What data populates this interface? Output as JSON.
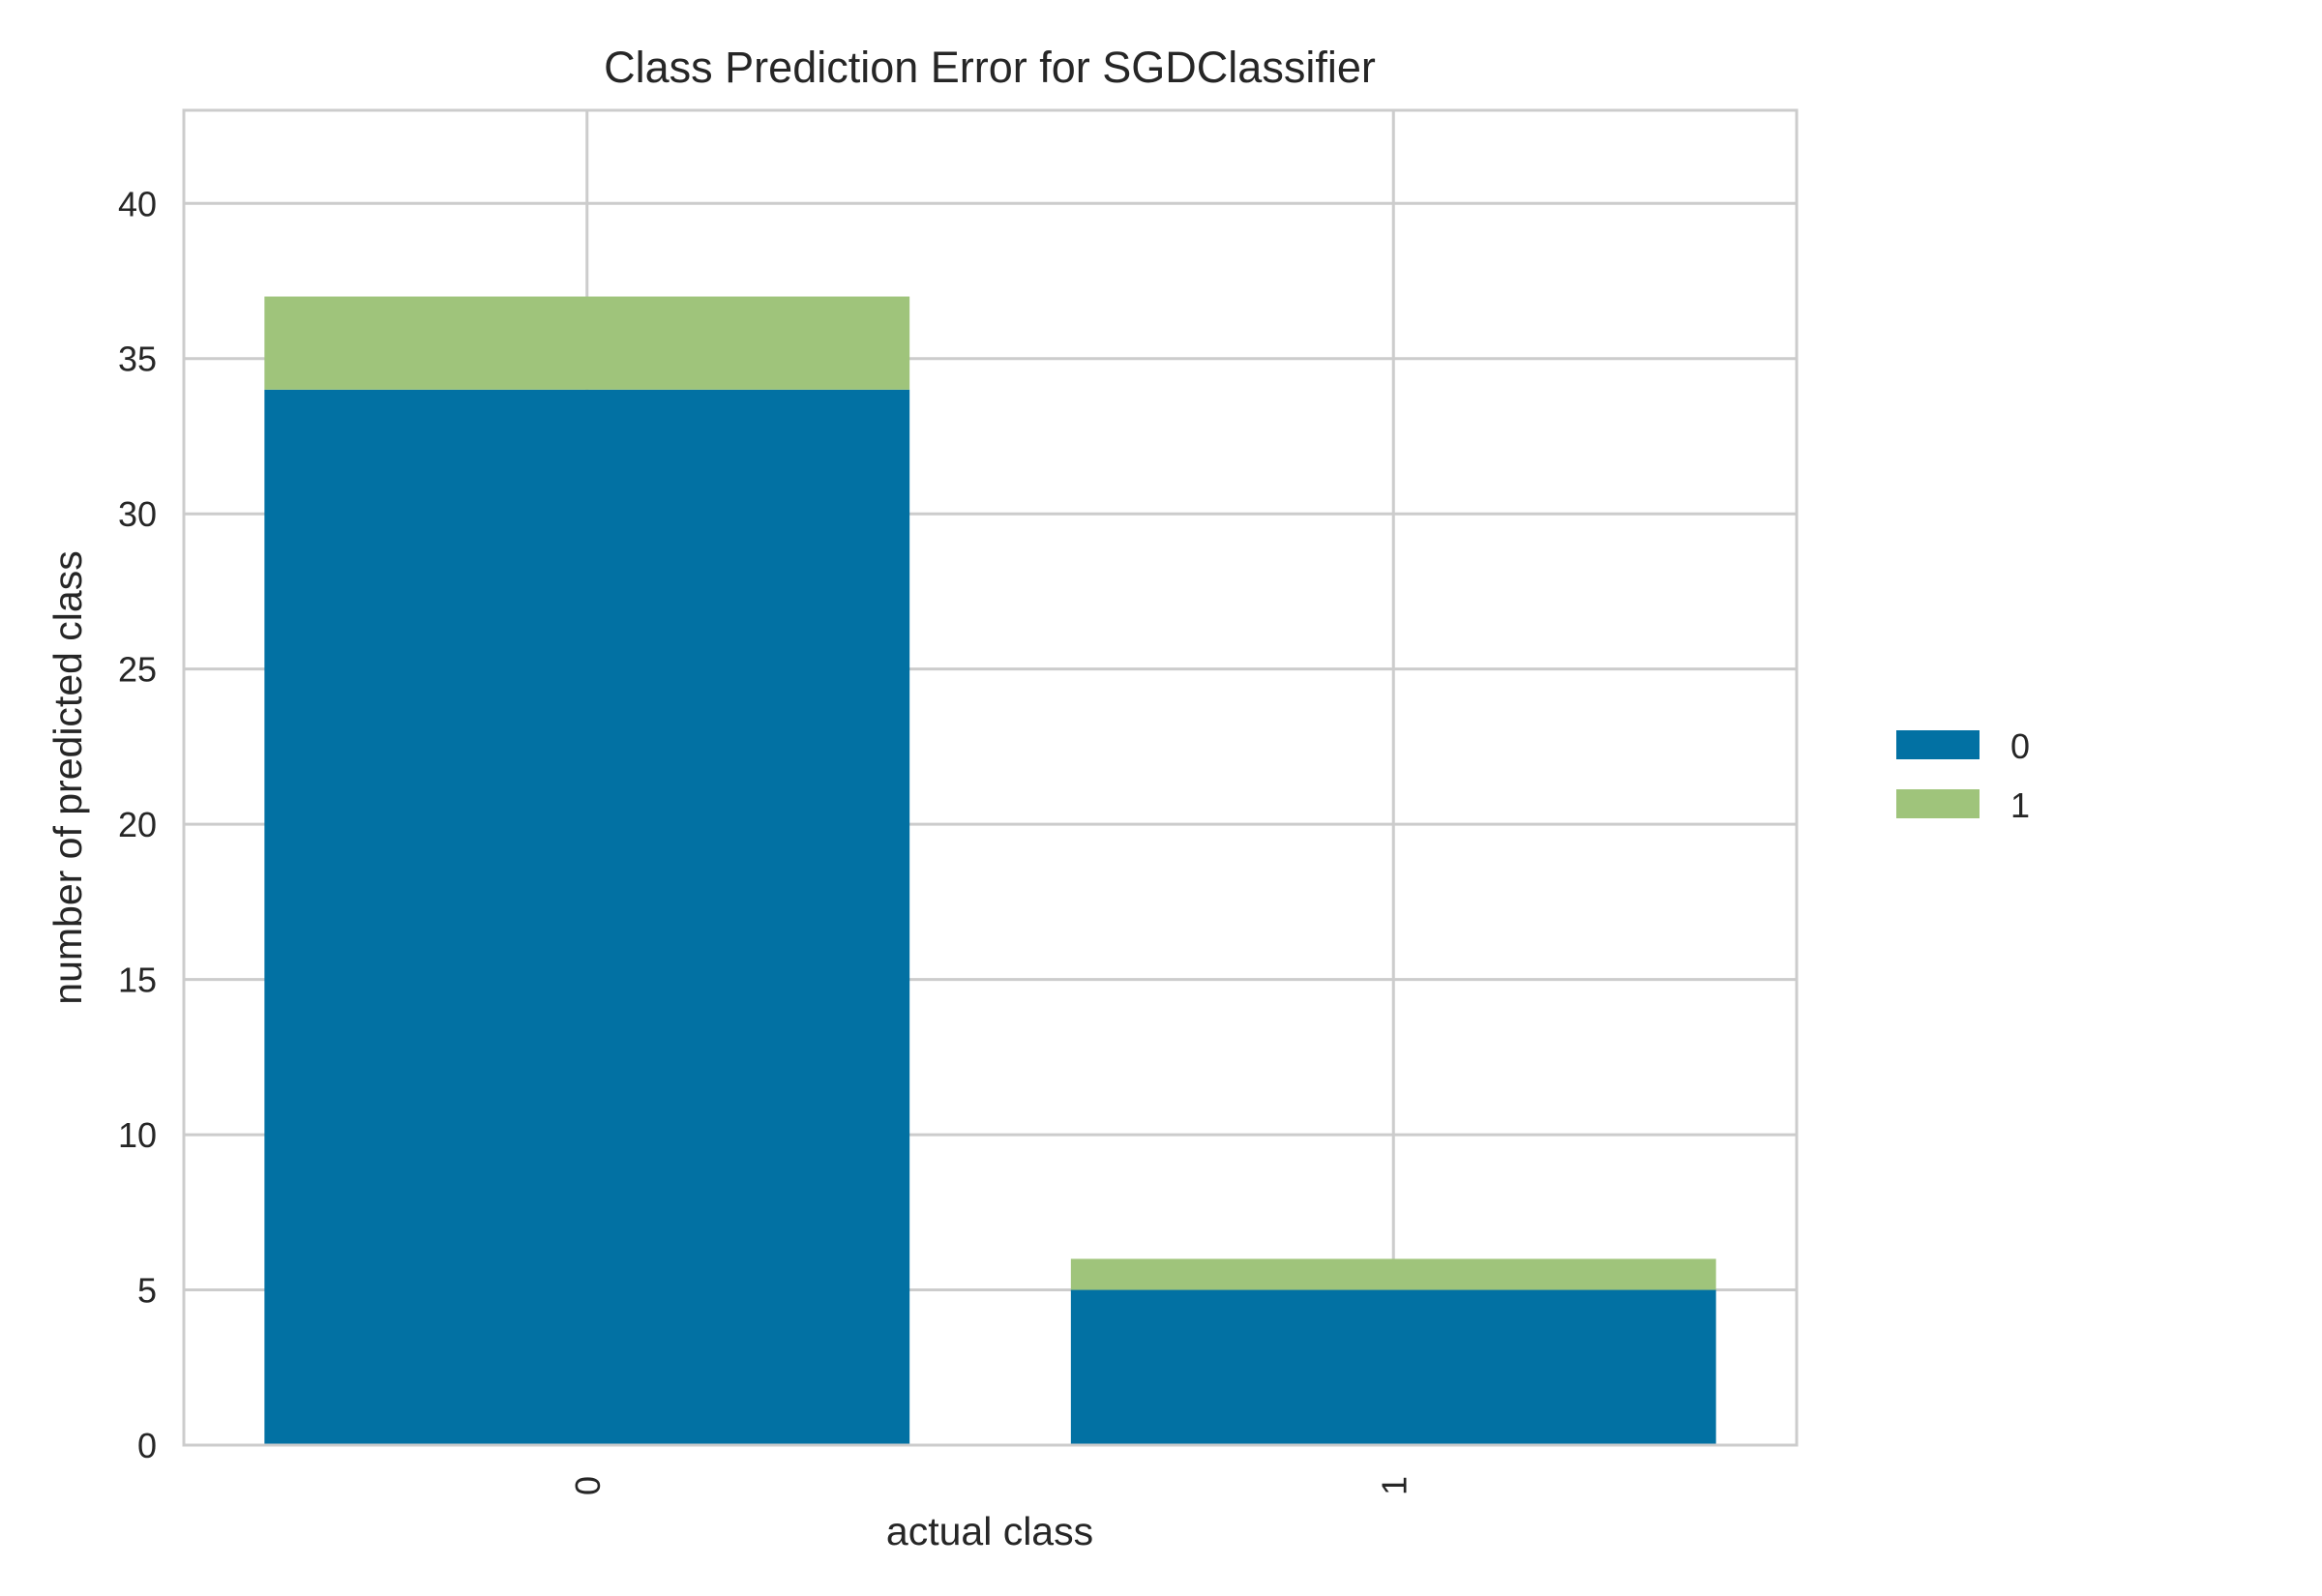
{
  "chart_data": {
    "type": "bar",
    "stacked": true,
    "title": "Class Prediction Error for SGDClassifier",
    "xlabel": "actual class",
    "ylabel": "number of predicted class",
    "categories": [
      "0",
      "1"
    ],
    "series": [
      {
        "name": "0",
        "values": [
          34,
          5
        ],
        "color": "#0271a3"
      },
      {
        "name": "1",
        "values": [
          3,
          1
        ],
        "color": "#9fc47b"
      }
    ],
    "ylim": [
      0,
      43
    ],
    "yticks": [
      "0",
      "5",
      "10",
      "15",
      "20",
      "25",
      "30",
      "35",
      "40"
    ],
    "grid": true,
    "legend": "center-right, outside plot"
  }
}
